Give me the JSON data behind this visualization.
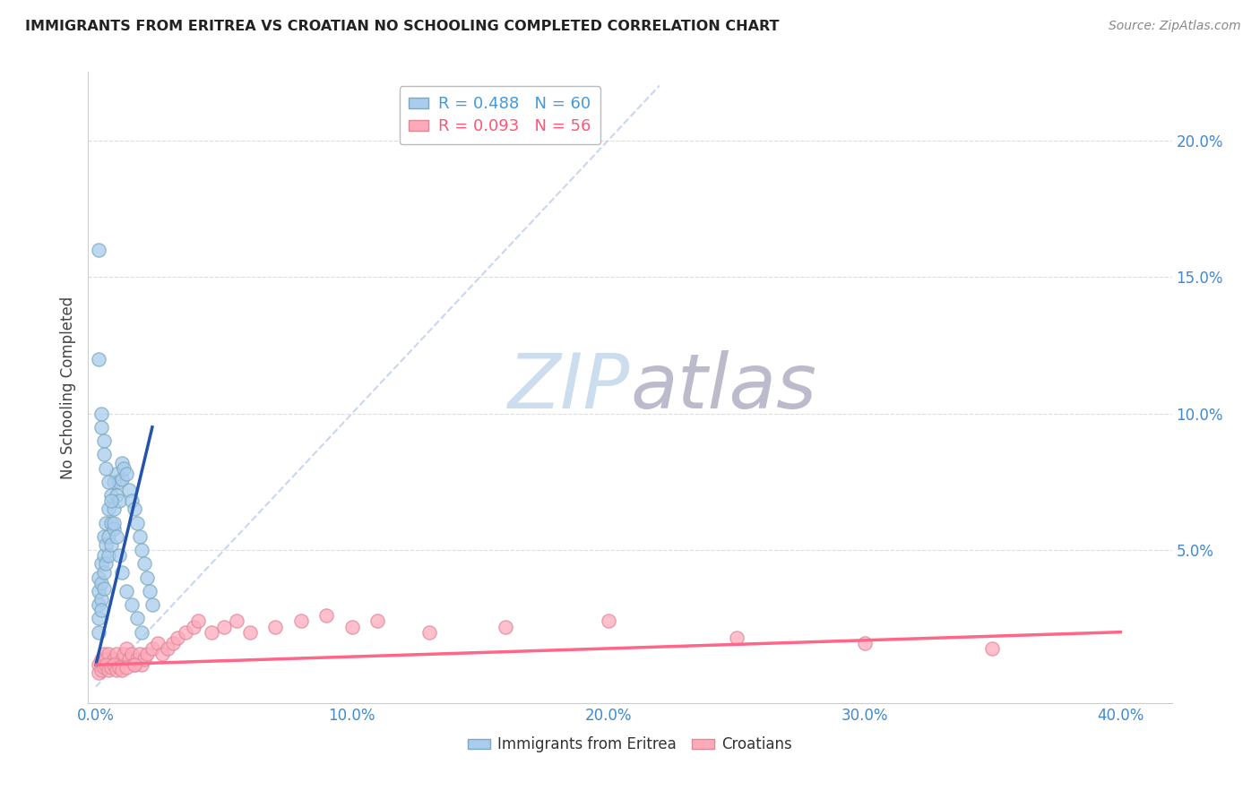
{
  "title": "IMMIGRANTS FROM ERITREA VS CROATIAN NO SCHOOLING COMPLETED CORRELATION CHART",
  "source": "Source: ZipAtlas.com",
  "ylabel": "No Schooling Completed",
  "xlim": [
    -0.003,
    0.42
  ],
  "ylim": [
    -0.006,
    0.225
  ],
  "xticks": [
    0.0,
    0.1,
    0.2,
    0.3,
    0.4
  ],
  "xtick_labels": [
    "0.0%",
    "10.0%",
    "20.0%",
    "30.0%",
    "40.0%"
  ],
  "yticks_right": [
    0.05,
    0.1,
    0.15,
    0.2
  ],
  "ytick_labels_right": [
    "5.0%",
    "10.0%",
    "15.0%",
    "20.0%"
  ],
  "legend_entries": [
    {
      "label": "R = 0.488   N = 60",
      "color": "#4499DD"
    },
    {
      "label": "R = 0.093   N = 56",
      "color": "#FF5577"
    }
  ],
  "series1_color": "#AACCEE",
  "series2_color": "#FFAABB",
  "series1_edge": "#7AAABB",
  "series2_edge": "#DD8899",
  "trendline1_color": "#2255AA",
  "trendline2_color": "#FF6688",
  "refline_color": "#BBCCEE",
  "watermark_zip_color": "#CCDDEE",
  "watermark_atlas_color": "#BBBBCC",
  "blue_scatter_x": [
    0.001,
    0.001,
    0.001,
    0.001,
    0.001,
    0.002,
    0.002,
    0.002,
    0.002,
    0.003,
    0.003,
    0.003,
    0.003,
    0.004,
    0.004,
    0.004,
    0.005,
    0.005,
    0.005,
    0.006,
    0.006,
    0.006,
    0.007,
    0.007,
    0.007,
    0.008,
    0.008,
    0.009,
    0.009,
    0.01,
    0.01,
    0.011,
    0.012,
    0.013,
    0.014,
    0.015,
    0.016,
    0.017,
    0.018,
    0.019,
    0.02,
    0.021,
    0.022,
    0.001,
    0.001,
    0.002,
    0.002,
    0.003,
    0.003,
    0.004,
    0.005,
    0.006,
    0.007,
    0.008,
    0.009,
    0.01,
    0.012,
    0.014,
    0.016,
    0.018
  ],
  "blue_scatter_y": [
    0.04,
    0.035,
    0.03,
    0.025,
    0.02,
    0.045,
    0.038,
    0.032,
    0.028,
    0.055,
    0.048,
    0.042,
    0.036,
    0.06,
    0.052,
    0.045,
    0.065,
    0.055,
    0.048,
    0.07,
    0.06,
    0.052,
    0.075,
    0.065,
    0.058,
    0.078,
    0.07,
    0.075,
    0.068,
    0.082,
    0.076,
    0.08,
    0.078,
    0.072,
    0.068,
    0.065,
    0.06,
    0.055,
    0.05,
    0.045,
    0.04,
    0.035,
    0.03,
    0.16,
    0.12,
    0.1,
    0.095,
    0.09,
    0.085,
    0.08,
    0.075,
    0.068,
    0.06,
    0.055,
    0.048,
    0.042,
    0.035,
    0.03,
    0.025,
    0.02
  ],
  "pink_scatter_x": [
    0.001,
    0.002,
    0.003,
    0.004,
    0.005,
    0.006,
    0.007,
    0.008,
    0.009,
    0.01,
    0.011,
    0.012,
    0.013,
    0.014,
    0.015,
    0.016,
    0.017,
    0.018,
    0.019,
    0.02,
    0.022,
    0.024,
    0.026,
    0.028,
    0.03,
    0.032,
    0.035,
    0.038,
    0.04,
    0.045,
    0.05,
    0.055,
    0.06,
    0.07,
    0.08,
    0.09,
    0.1,
    0.11,
    0.13,
    0.16,
    0.2,
    0.25,
    0.3,
    0.35,
    0.001,
    0.002,
    0.003,
    0.004,
    0.005,
    0.006,
    0.007,
    0.008,
    0.009,
    0.01,
    0.012,
    0.015
  ],
  "pink_scatter_y": [
    0.008,
    0.01,
    0.012,
    0.01,
    0.012,
    0.008,
    0.01,
    0.012,
    0.008,
    0.01,
    0.012,
    0.014,
    0.01,
    0.012,
    0.008,
    0.01,
    0.012,
    0.008,
    0.01,
    0.012,
    0.014,
    0.016,
    0.012,
    0.014,
    0.016,
    0.018,
    0.02,
    0.022,
    0.024,
    0.02,
    0.022,
    0.024,
    0.02,
    0.022,
    0.024,
    0.026,
    0.022,
    0.024,
    0.02,
    0.022,
    0.024,
    0.018,
    0.016,
    0.014,
    0.005,
    0.006,
    0.007,
    0.008,
    0.006,
    0.007,
    0.008,
    0.006,
    0.007,
    0.006,
    0.007,
    0.008
  ],
  "blue_trend_x": [
    0.0,
    0.022
  ],
  "blue_trend_y": [
    0.008,
    0.095
  ],
  "pink_trend_x": [
    0.0,
    0.4
  ],
  "pink_trend_y": [
    0.008,
    0.02
  ],
  "ref_line_x": [
    0.0,
    0.22
  ],
  "ref_line_y": [
    0.0,
    0.22
  ],
  "background_color": "#FFFFFF",
  "grid_color": "#DDDDDD"
}
